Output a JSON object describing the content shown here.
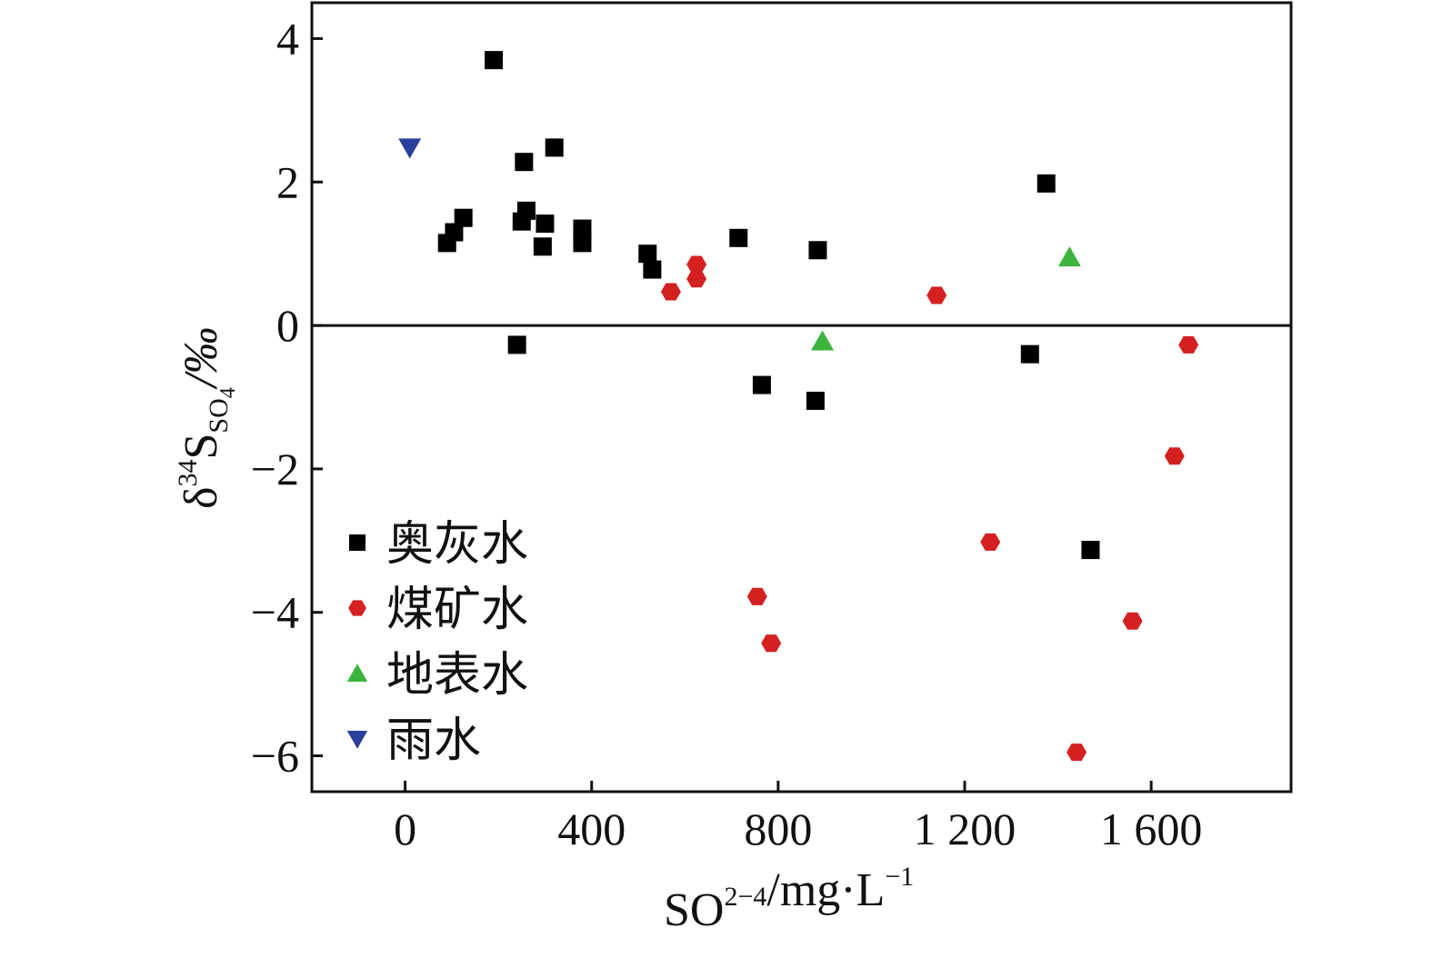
{
  "chart_data": {
    "type": "scatter",
    "xlabel": {
      "base": "SO",
      "sub": "4",
      "sup": "2−",
      "rest": "/mg·L",
      "rest_sup": "−1"
    },
    "ylabel": {
      "prefix": "δ",
      "sup": "34",
      "base": "S",
      "sub": "SO",
      "subsub": "4",
      "rest": "/‰"
    },
    "xlim": [
      -200,
      1900
    ],
    "ylim": [
      -6.5,
      4.5
    ],
    "x_ticks": [
      0,
      400,
      800,
      1200,
      1600
    ],
    "x_tick_labels": [
      "0",
      "400",
      "800",
      "1 200",
      "1 600"
    ],
    "y_ticks": [
      4,
      2,
      0,
      -2,
      -4,
      -6
    ],
    "y_tick_labels": [
      "4",
      "2",
      "0",
      "−2",
      "−4",
      "−6"
    ],
    "zero_line": true,
    "grid": false,
    "legend_position": "bottom-left",
    "series": [
      {
        "name": "奥灰水",
        "marker": "square",
        "color": "#000000",
        "points": [
          [
            190,
            3.7
          ],
          [
            320,
            2.48
          ],
          [
            255,
            2.28
          ],
          [
            1375,
            1.98
          ],
          [
            125,
            1.5
          ],
          [
            105,
            1.3
          ],
          [
            90,
            1.15
          ],
          [
            260,
            1.6
          ],
          [
            250,
            1.45
          ],
          [
            300,
            1.42
          ],
          [
            295,
            1.1
          ],
          [
            380,
            1.35
          ],
          [
            380,
            1.15
          ],
          [
            520,
            1.0
          ],
          [
            530,
            0.78
          ],
          [
            715,
            1.22
          ],
          [
            885,
            1.05
          ],
          [
            240,
            -0.27
          ],
          [
            765,
            -0.83
          ],
          [
            880,
            -1.05
          ],
          [
            1340,
            -0.4
          ],
          [
            1470,
            -3.13
          ]
        ]
      },
      {
        "name": "煤矿水",
        "marker": "hexagon",
        "color": "#d42020",
        "points": [
          [
            570,
            0.47
          ],
          [
            625,
            0.85
          ],
          [
            625,
            0.65
          ],
          [
            1140,
            0.42
          ],
          [
            1680,
            -0.27
          ],
          [
            1650,
            -1.82
          ],
          [
            1255,
            -3.02
          ],
          [
            755,
            -3.78
          ],
          [
            785,
            -4.43
          ],
          [
            1560,
            -4.12
          ],
          [
            1440,
            -5.95
          ]
        ]
      },
      {
        "name": "地表水",
        "marker": "triangle-up",
        "color": "#3cb43c",
        "points": [
          [
            1425,
            0.95
          ],
          [
            895,
            -0.22
          ]
        ]
      },
      {
        "name": "雨水",
        "marker": "triangle-down",
        "color": "#2a3e9c",
        "points": [
          [
            10,
            2.48
          ]
        ]
      }
    ]
  }
}
